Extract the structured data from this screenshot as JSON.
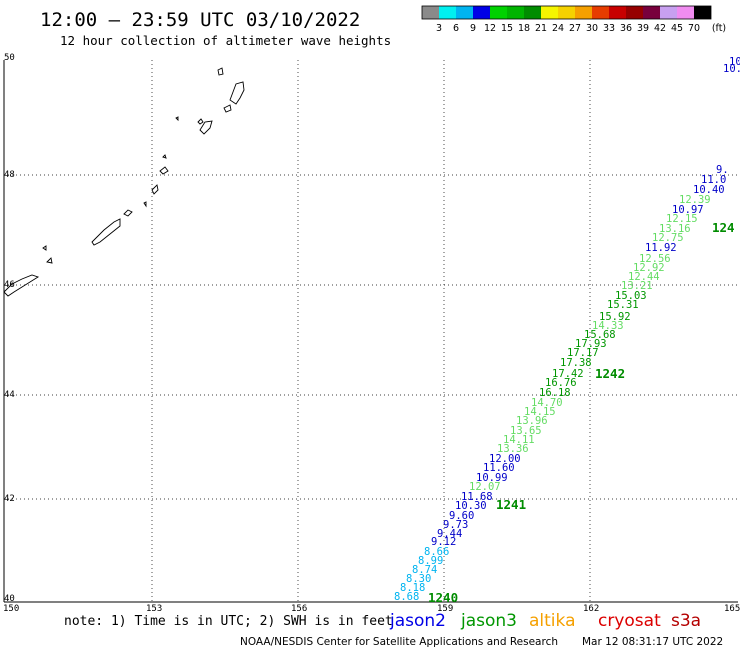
{
  "header": {
    "title": "12:00 — 23:59 UTC 03/10/2022",
    "subtitle": "12 hour collection of altimeter wave heights"
  },
  "colorbar": {
    "colors": [
      "#8a8a8a",
      "#00f0f0",
      "#00b4f0",
      "#0000e6",
      "#00d200",
      "#00b400",
      "#008c00",
      "#f5f500",
      "#f5d200",
      "#f5a000",
      "#e63c00",
      "#c80000",
      "#960000",
      "#78003c",
      "#c8a0f0",
      "#f08cf0",
      "#000000"
    ],
    "labels": [
      "3",
      "6",
      "9",
      "12",
      "15",
      "18",
      "21",
      "24",
      "27",
      "30",
      "33",
      "36",
      "39",
      "42",
      "45",
      "70"
    ],
    "unit": "(ft)"
  },
  "axes": {
    "lon_ticks": [
      "150",
      "153",
      "156",
      "159",
      "162",
      "165"
    ],
    "lat_ticks": [
      "50",
      "48",
      "46",
      "44",
      "42",
      "40"
    ]
  },
  "swh_colors": {
    "cyan": "#00b4f0",
    "blue": "#0000c8",
    "green": "#009600",
    "light_green": "#64dc64"
  },
  "observations": [
    {
      "value": "8.68",
      "color": "cyan"
    },
    {
      "value": "8.18",
      "color": "cyan"
    },
    {
      "value": "8.30",
      "color": "cyan"
    },
    {
      "value": "8.74",
      "color": "cyan"
    },
    {
      "value": "8.99",
      "color": "cyan"
    },
    {
      "value": "8.66",
      "color": "cyan"
    },
    {
      "value": "9.12",
      "color": "blue"
    },
    {
      "value": "9.44",
      "color": "blue"
    },
    {
      "value": "9.73",
      "color": "blue"
    },
    {
      "value": "9.60",
      "color": "blue"
    },
    {
      "value": "10.30",
      "color": "blue"
    },
    {
      "value": "11.68",
      "color": "blue"
    },
    {
      "value": "12.07",
      "color": "light_green"
    },
    {
      "value": "10.99",
      "color": "blue"
    },
    {
      "value": "11.60",
      "color": "blue"
    },
    {
      "value": "12.00",
      "color": "blue"
    },
    {
      "value": "13.36",
      "color": "light_green"
    },
    {
      "value": "14.11",
      "color": "light_green"
    },
    {
      "value": "13.65",
      "color": "light_green"
    },
    {
      "value": "13.96",
      "color": "light_green"
    },
    {
      "value": "14.15",
      "color": "light_green"
    },
    {
      "value": "14.70",
      "color": "light_green"
    },
    {
      "value": "16.18",
      "color": "green"
    },
    {
      "value": "16.76",
      "color": "green"
    },
    {
      "value": "17.42",
      "color": "green"
    },
    {
      "value": "17.38",
      "color": "green"
    },
    {
      "value": "17.17",
      "color": "green"
    },
    {
      "value": "17.93",
      "color": "green"
    },
    {
      "value": "15.68",
      "color": "green"
    },
    {
      "value": "14.33",
      "color": "light_green"
    },
    {
      "value": "15.92",
      "color": "green"
    },
    {
      "value": "15.31",
      "color": "green"
    },
    {
      "value": "15.03",
      "color": "green"
    },
    {
      "value": "13.21",
      "color": "light_green"
    },
    {
      "value": "12.44",
      "color": "light_green"
    },
    {
      "value": "12.92",
      "color": "light_green"
    },
    {
      "value": "12.56",
      "color": "light_green"
    },
    {
      "value": "11.92",
      "color": "blue"
    },
    {
      "value": "12.75",
      "color": "light_green"
    },
    {
      "value": "13.16",
      "color": "light_green"
    },
    {
      "value": "12.15",
      "color": "light_green"
    },
    {
      "value": "10.97",
      "color": "blue"
    },
    {
      "value": "12.39",
      "color": "light_green"
    },
    {
      "value": "10.40",
      "color": "blue"
    },
    {
      "value": "11.0",
      "color": "blue"
    },
    {
      "value": "9.",
      "color": "blue"
    },
    {
      "value": "10.",
      "color": "blue"
    },
    {
      "value": "10",
      "color": "blue"
    }
  ],
  "time_labels": [
    "1240",
    "1241",
    "1242",
    "124"
  ],
  "footer": {
    "note": "note: 1) Time is in UTC; 2) SWH is in feet",
    "satellites": [
      {
        "name": "jason2",
        "color": "#0000e6"
      },
      {
        "name": "jason3",
        "color": "#009600"
      },
      {
        "name": "altika",
        "color": "#f5a000"
      },
      {
        "name": "cryosat",
        "color": "#dc0000"
      },
      {
        "name": "s3a",
        "color": "#b40000"
      }
    ],
    "credit": "NOAA/NESDIS Center for Satellite Applications and Research",
    "timestamp": "Mar 12 08:31:17 UTC 2022"
  }
}
